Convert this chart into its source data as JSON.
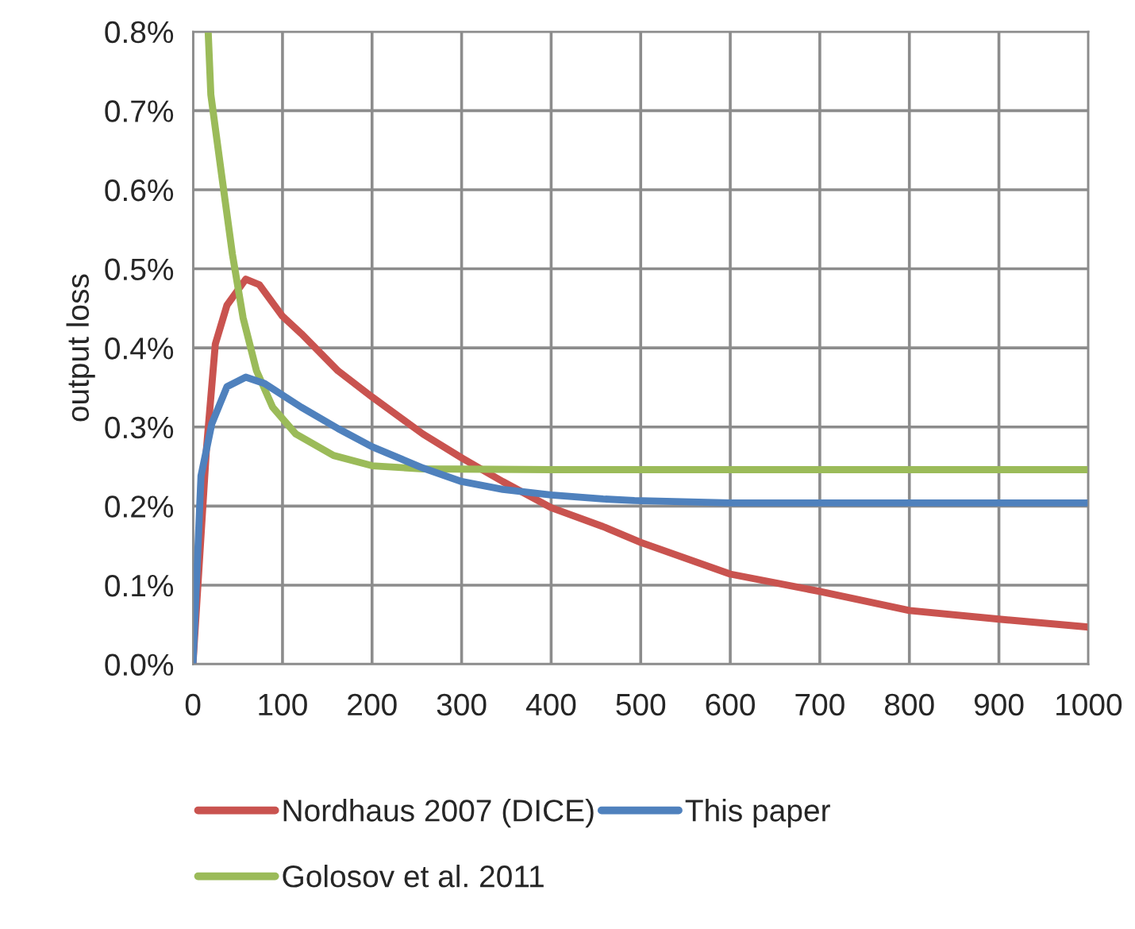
{
  "chart_data": {
    "type": "line",
    "ylabel": "output loss",
    "xlim": [
      0,
      1000
    ],
    "xticks": [
      0,
      100,
      200,
      300,
      400,
      500,
      600,
      700,
      800,
      900,
      1000
    ],
    "ylim": [
      0,
      0.8
    ],
    "yticks": [
      {
        "value": 0,
        "label": "0.0%"
      },
      {
        "value": 0.1,
        "label": "0.1%"
      },
      {
        "value": 0.2,
        "label": "0.2%"
      },
      {
        "value": 0.3,
        "label": "0.3%"
      },
      {
        "value": 0.4,
        "label": "0.4%"
      },
      {
        "value": 0.5,
        "label": "0.5%"
      },
      {
        "value": 0.6,
        "label": "0.6%"
      },
      {
        "value": 0.7,
        "label": "0.7%"
      },
      {
        "value": 0.8,
        "label": "0.8%"
      }
    ],
    "grid": true,
    "legend": "bottom",
    "marker": "none",
    "line_style": "solid",
    "series": [
      {
        "name": "Nordhaus 2007 (DICE)",
        "color": "#c9534f",
        "x": [
          0,
          15,
          25,
          38,
          59,
          74,
          100,
          121,
          162,
          200,
          257,
          300,
          346,
          400,
          458,
          500,
          600,
          700,
          800,
          900,
          1000
        ],
        "values": [
          0,
          0.271,
          0.405,
          0.454,
          0.487,
          0.48,
          0.44,
          0.418,
          0.371,
          0.338,
          0.291,
          0.261,
          0.231,
          0.198,
          0.174,
          0.154,
          0.114,
          0.092,
          0.068,
          0.057,
          0.047
        ]
      },
      {
        "name": "Golosov et al. 2011",
        "color": "#9bbb59",
        "x": [
          17,
          20,
          32,
          44,
          56,
          71,
          89,
          115,
          157,
          200,
          257,
          400,
          600,
          800,
          1000
        ],
        "values": [
          0.8,
          0.72,
          0.619,
          0.519,
          0.438,
          0.371,
          0.325,
          0.291,
          0.264,
          0.251,
          0.247,
          0.246,
          0.246,
          0.246,
          0.246
        ]
      },
      {
        "name": "This paper",
        "color": "#4f81bd",
        "x": [
          0,
          9,
          21,
          38,
          59,
          80,
          121,
          162,
          200,
          257,
          300,
          346,
          400,
          458,
          493,
          600,
          700,
          800,
          900,
          1000
        ],
        "values": [
          0,
          0.238,
          0.304,
          0.351,
          0.363,
          0.355,
          0.325,
          0.298,
          0.275,
          0.248,
          0.231,
          0.221,
          0.214,
          0.209,
          0.207,
          0.204,
          0.204,
          0.204,
          0.204,
          0.204
        ]
      }
    ]
  }
}
